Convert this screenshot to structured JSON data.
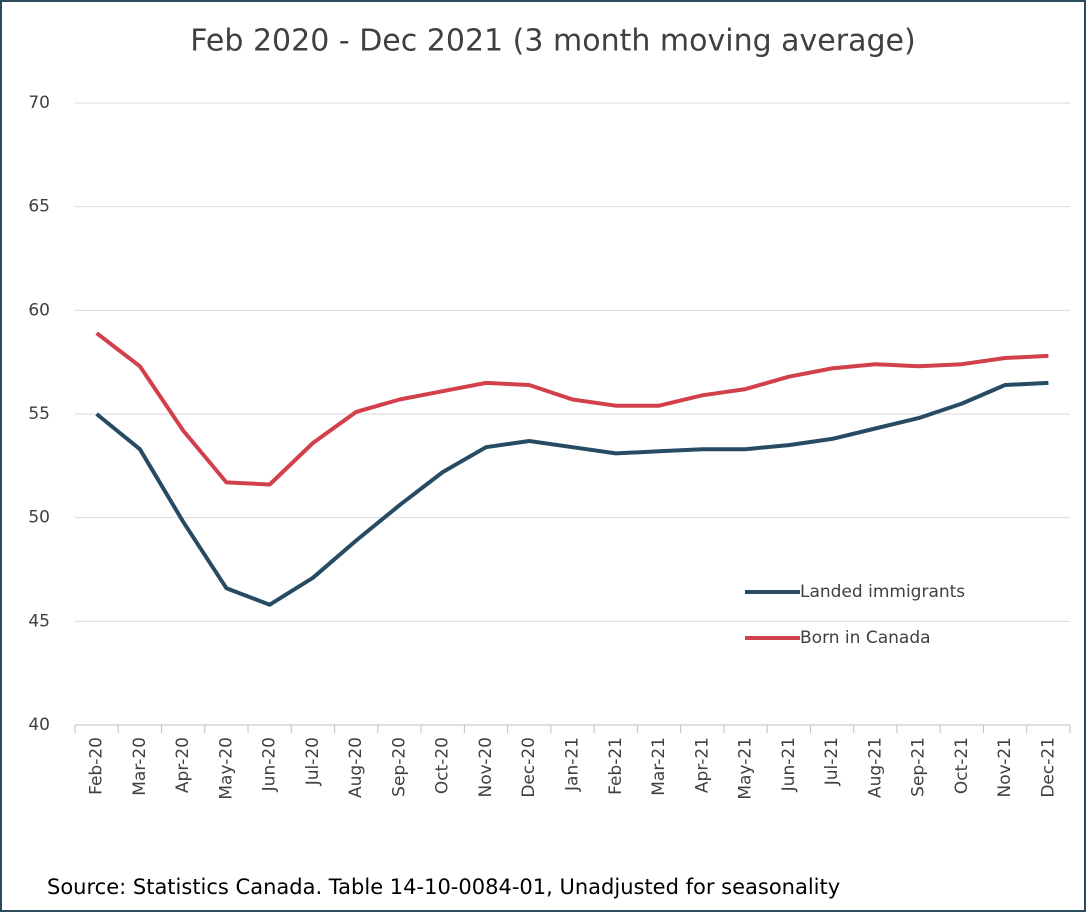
{
  "chart_data": {
    "type": "line",
    "title": "Feb 2020 - Dec 2021 (3 month moving average)",
    "source": "Source:  Statistics Canada. Table 14-10-0084-01, Unadjusted for seasonality",
    "categories": [
      "Feb-20",
      "Mar-20",
      "Apr-20",
      "May-20",
      "Jun-20",
      "Jul-20",
      "Aug-20",
      "Sep-20",
      "Oct-20",
      "Nov-20",
      "Dec-20",
      "Jan-21",
      "Feb-21",
      "Mar-21",
      "Apr-21",
      "May-21",
      "Jun-21",
      "Jul-21",
      "Aug-21",
      "Sep-21",
      "Oct-21",
      "Nov-21",
      "Dec-21"
    ],
    "series": [
      {
        "name": "Landed immigrants",
        "color": "#264b63",
        "values": [
          55.0,
          53.3,
          49.8,
          46.6,
          45.8,
          47.1,
          48.9,
          50.6,
          52.2,
          53.4,
          53.7,
          53.4,
          53.1,
          53.2,
          53.3,
          53.3,
          53.5,
          53.8,
          54.3,
          54.8,
          55.5,
          56.4,
          56.5
        ]
      },
      {
        "name": "Born in Canada",
        "color": "#d2414b",
        "values": [
          58.9,
          57.3,
          54.2,
          51.7,
          51.6,
          53.6,
          55.1,
          55.7,
          56.1,
          56.5,
          56.4,
          55.7,
          55.4,
          55.4,
          55.9,
          56.2,
          56.8,
          57.2,
          57.4,
          57.3,
          57.4,
          57.7,
          57.8
        ]
      }
    ],
    "ylim": [
      40,
      70
    ],
    "yticks": [
      40,
      45,
      50,
      55,
      60,
      65,
      70
    ],
    "grid": true
  }
}
